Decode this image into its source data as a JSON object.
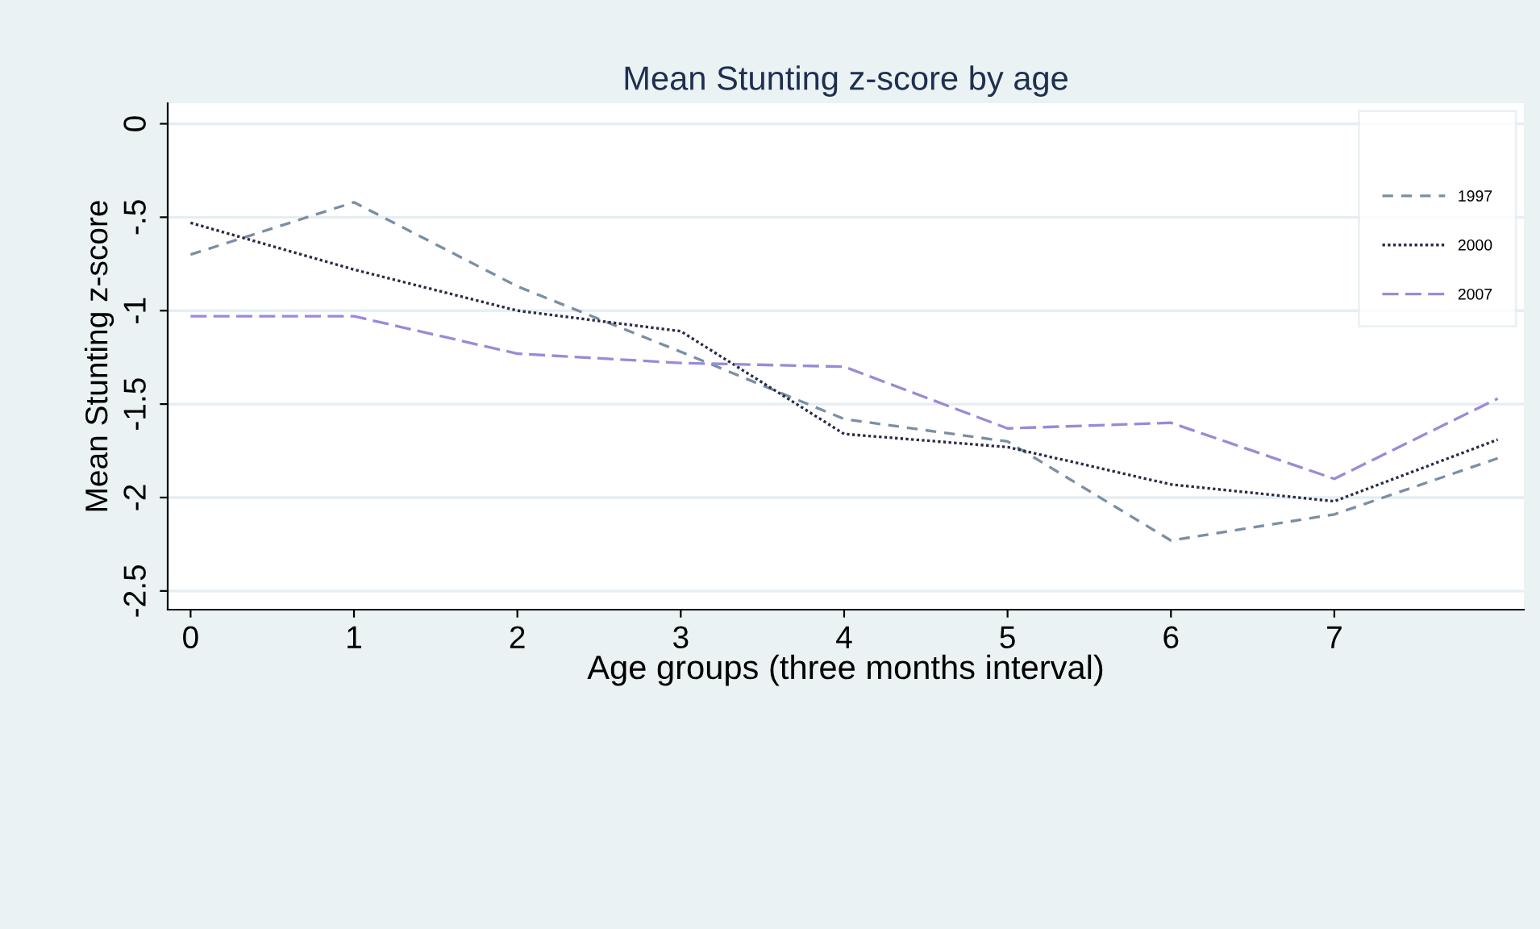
{
  "chart_data": {
    "type": "line",
    "title": "Mean Stunting z-score by age",
    "xlabel": "Age groups (three months interval)",
    "ylabel": "Mean Stunting z-score",
    "x": [
      0,
      1,
      2,
      3,
      4,
      5,
      6,
      7,
      8
    ],
    "series": [
      {
        "name": "1997",
        "color": "#7b8fa3",
        "line_style": "dashed",
        "values": [
          -0.7,
          -0.42,
          -0.87,
          -1.22,
          -1.58,
          -1.7,
          -2.23,
          -2.09,
          -1.79
        ]
      },
      {
        "name": "2000",
        "color": "#2a2a4a",
        "line_style": "dotted",
        "values": [
          -0.53,
          -0.78,
          -1.0,
          -1.11,
          -1.66,
          -1.73,
          -1.93,
          -2.02,
          -1.69
        ]
      },
      {
        "name": "2007",
        "color": "#9a8ad8",
        "line_style": "longdash",
        "values": [
          -1.03,
          -1.03,
          -1.23,
          -1.28,
          -1.3,
          -1.63,
          -1.6,
          -1.9,
          -1.47
        ]
      }
    ],
    "xlim": [
      -0.14,
      8.16
    ],
    "ylim": [
      -2.6,
      0.11
    ],
    "xticks": [
      0,
      1,
      2,
      3,
      4,
      5,
      6,
      7
    ],
    "yticks": [
      0,
      {
        "value": -0.5,
        "label": "-.5"
      },
      -1,
      -1.5,
      -2,
      -2.5
    ],
    "grid": "y",
    "legend": "top right",
    "marker": "none"
  }
}
